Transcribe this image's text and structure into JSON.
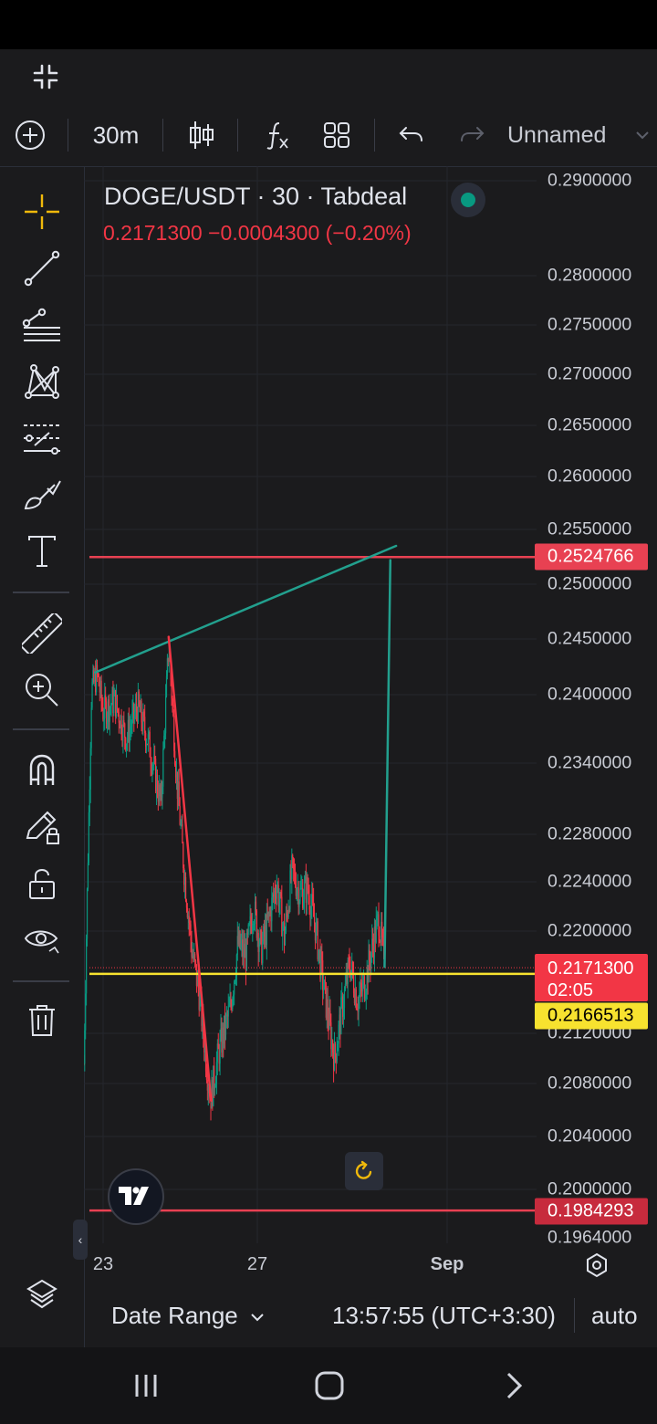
{
  "header": {
    "interval": "30m",
    "layout_name": "Unnamed"
  },
  "legend": {
    "title": "DOGE/USDT · 30 · Tabdeal",
    "price_change": "0.2171300  −0.0004300 (−0.20%)"
  },
  "price_axis": {
    "labels": [
      "0.2900000",
      "0.2800000",
      "0.2750000",
      "0.2700000",
      "0.2650000",
      "0.2600000",
      "0.2550000",
      "0.2500000",
      "0.2450000",
      "0.2400000",
      "0.2340000",
      "0.2280000",
      "0.2240000",
      "0.2200000",
      "0.2120000",
      "0.2080000",
      "0.2040000",
      "0.2000000",
      "0.1964000"
    ],
    "badges": {
      "upper_line": "0.2524766",
      "last_price": "0.2171300",
      "countdown": "02:05",
      "yellow_line": "0.2166513",
      "lower_line": "0.1984293"
    }
  },
  "time_axis": {
    "labels": [
      "23",
      "27",
      "Sep"
    ]
  },
  "bottom_bar": {
    "date_range": "Date Range",
    "clock": "13:57:55 (UTC+3:30)",
    "scale_mode": "auto"
  },
  "colors": {
    "up": "#089981",
    "down": "#f23645",
    "yellow_line": "#f7e22f",
    "red_line": "#e84152",
    "trend_line": "#22a08e",
    "drawing_red": "#f23645",
    "accent_crosshair": "#f0b90b"
  },
  "icons": {
    "left_tools": [
      "crosshair-icon",
      "trend-line-icon",
      "fib-retracement-icon",
      "xabcd-pattern-icon",
      "long-position-icon",
      "brush-icon",
      "text-icon",
      "ruler-icon",
      "zoom-in-icon",
      "magnet-icon",
      "lock-drawing-icon",
      "lock-icon",
      "eye-icon",
      "trash-icon"
    ]
  },
  "chart_data": {
    "type": "candlestick",
    "symbol": "DOGE/USDT",
    "interval": "30",
    "exchange": "Tabdeal",
    "x_ticks": [
      "23",
      "27",
      "Sep"
    ],
    "y_range": [
      0.1964,
      0.29
    ],
    "last_price": 0.21713,
    "horizontal_lines": [
      {
        "price": 0.2524766,
        "color": "#e84152"
      },
      {
        "price": 0.2166513,
        "color": "#f7e22f"
      },
      {
        "price": 0.1984293,
        "color": "#e84152"
      }
    ],
    "trend_lines": [
      {
        "color": "#22a08e",
        "points": [
          [
            22.8,
            0.242
          ],
          [
            30.6,
            0.2535
          ]
        ]
      },
      {
        "color": "#f23645",
        "points": [
          [
            24.7,
            0.2452
          ],
          [
            25.8,
            0.2067
          ]
        ]
      },
      {
        "color": "#22a08e",
        "points": [
          [
            30.3,
            0.2172
          ],
          [
            30.45,
            0.2522
          ]
        ]
      }
    ],
    "close_path": [
      [
        22.5,
        0.2096
      ],
      [
        22.7,
        0.2405
      ],
      [
        22.85,
        0.2418
      ],
      [
        23.0,
        0.2385
      ],
      [
        23.3,
        0.2395
      ],
      [
        23.6,
        0.2362
      ],
      [
        23.9,
        0.239
      ],
      [
        24.2,
        0.2355
      ],
      [
        24.5,
        0.2305
      ],
      [
        24.7,
        0.2445
      ],
      [
        24.9,
        0.233
      ],
      [
        25.1,
        0.225
      ],
      [
        25.3,
        0.2185
      ],
      [
        25.5,
        0.215
      ],
      [
        25.7,
        0.209
      ],
      [
        25.8,
        0.207
      ],
      [
        26.0,
        0.2105
      ],
      [
        26.3,
        0.214
      ],
      [
        26.5,
        0.219
      ],
      [
        26.7,
        0.218
      ],
      [
        26.9,
        0.222
      ],
      [
        27.1,
        0.2185
      ],
      [
        27.3,
        0.221
      ],
      [
        27.5,
        0.224
      ],
      [
        27.7,
        0.2195
      ],
      [
        27.9,
        0.225
      ],
      [
        28.1,
        0.223
      ],
      [
        28.3,
        0.2235
      ],
      [
        28.5,
        0.2205
      ],
      [
        28.7,
        0.216
      ],
      [
        28.9,
        0.212
      ],
      [
        29.0,
        0.21
      ],
      [
        29.2,
        0.214
      ],
      [
        29.4,
        0.2175
      ],
      [
        29.6,
        0.2145
      ],
      [
        29.8,
        0.216
      ],
      [
        30.0,
        0.219
      ],
      [
        30.15,
        0.221
      ],
      [
        30.3,
        0.2172
      ]
    ]
  }
}
